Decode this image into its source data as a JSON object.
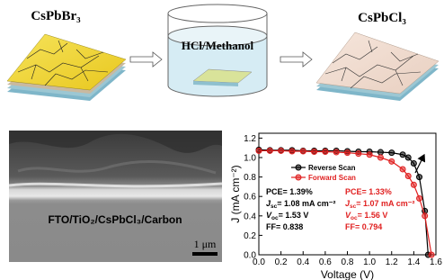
{
  "diagram": {
    "left_label": "CsPbBr₃",
    "middle_label": "HCl/Methanol",
    "right_label": "CsPbCl₃"
  },
  "image": {
    "caption": "FTO/TiO₂/CsPbCl₃/Carbon",
    "scale_bar": "1 μm"
  },
  "chart_data": {
    "type": "line",
    "x_label": "Voltage (V)",
    "y_label": "J (mA cm⁻²)",
    "xlim": [
      0,
      1.6
    ],
    "ylim": [
      0,
      1.25
    ],
    "xticks": [
      {
        "value": 0,
        "label": "0.0"
      },
      {
        "value": 0.2,
        "label": "0.2"
      },
      {
        "value": 0.4,
        "label": "0.4"
      },
      {
        "value": 0.6,
        "label": "0.6"
      },
      {
        "value": 0.8,
        "label": "0.8"
      },
      {
        "value": 1,
        "label": "1.0"
      },
      {
        "value": 1.2,
        "label": "1.2"
      },
      {
        "value": 1.4,
        "label": "1.4"
      },
      {
        "value": 1.6,
        "label": "1.6"
      }
    ],
    "yticks": [
      {
        "value": 0,
        "label": "0.0"
      },
      {
        "value": 0.2,
        "label": "0.2"
      },
      {
        "value": 0.4,
        "label": "0.4"
      },
      {
        "value": 0.6,
        "label": "0.6"
      },
      {
        "value": 0.8,
        "label": "0.8"
      },
      {
        "value": 1,
        "label": "1.0"
      },
      {
        "value": 1.2,
        "label": "1.2"
      }
    ],
    "series": [
      {
        "name": "Reverse Scan",
        "color": "#000000",
        "x": [
          0,
          0.1,
          0.2,
          0.3,
          0.4,
          0.5,
          0.6,
          0.7,
          0.8,
          0.9,
          1.0,
          1.1,
          1.2,
          1.3,
          1.35,
          1.4,
          1.45,
          1.5,
          1.53
        ],
        "values": [
          1.08,
          1.075,
          1.075,
          1.075,
          1.07,
          1.07,
          1.07,
          1.07,
          1.065,
          1.06,
          1.06,
          1.055,
          1.05,
          1.03,
          1.0,
          0.94,
          0.8,
          0.45,
          0
        ]
      },
      {
        "name": "Forward Scan",
        "color": "#e02020",
        "x": [
          0,
          0.1,
          0.2,
          0.3,
          0.4,
          0.5,
          0.6,
          0.7,
          0.8,
          0.9,
          1.0,
          1.1,
          1.2,
          1.3,
          1.35,
          1.4,
          1.45,
          1.5,
          1.56
        ],
        "values": [
          1.07,
          1.07,
          1.07,
          1.065,
          1.065,
          1.06,
          1.06,
          1.055,
          1.05,
          1.04,
          1.03,
          1.0,
          0.96,
          0.88,
          0.81,
          0.72,
          0.58,
          0.4,
          0
        ]
      }
    ],
    "annotations": [
      [
        {
          "text": "PCE= 1.39%"
        },
        {
          "symbol": "J",
          "sub": "sc",
          "text": "= 1.08 mA cm⁻²"
        },
        {
          "symbol": "V",
          "sub": "oc",
          "text": "= 1.53 V"
        },
        {
          "text": "FF= 0.838"
        }
      ],
      [
        {
          "text": "PCE= 1.33%"
        },
        {
          "symbol": "J",
          "sub": "sc",
          "text": "= 1.07 mA cm⁻²"
        },
        {
          "symbol": "V",
          "sub": "oc",
          "text": "= 1.56 V"
        },
        {
          "text": "FF= 0.794"
        }
      ]
    ]
  }
}
